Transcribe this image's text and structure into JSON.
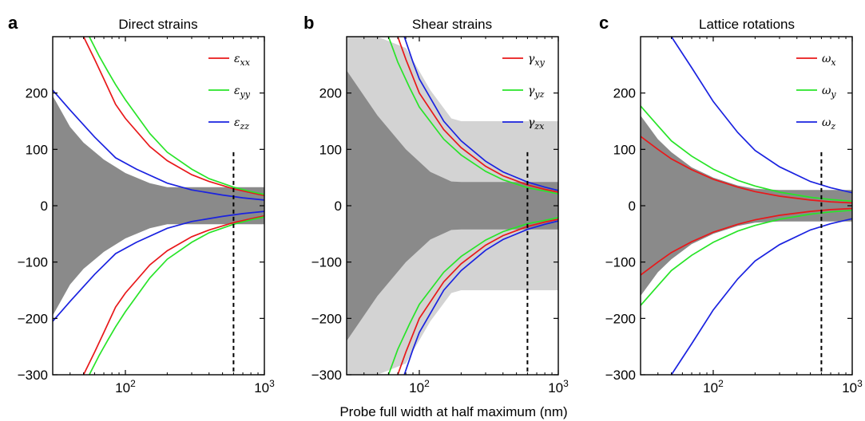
{
  "xlabel": "Probe full width at half maximum (nm)",
  "chart_data": [
    {
      "type": "line",
      "panel_letter": "a",
      "title": "Direct strains",
      "xscale": "log",
      "xlim": [
        30,
        1000
      ],
      "ylim": [
        -300,
        300
      ],
      "yticks": [
        {
          "v": -300,
          "label": "−300"
        },
        {
          "v": -200,
          "label": "−200"
        },
        {
          "v": -100,
          "label": "−100"
        },
        {
          "v": 0,
          "label": "0"
        },
        {
          "v": 100,
          "label": "100"
        },
        {
          "v": 200,
          "label": "200"
        }
      ],
      "xticks": [
        {
          "v": 100,
          "base": "10",
          "exp": "2"
        },
        {
          "v": 1000,
          "base": "10",
          "exp": "3"
        }
      ],
      "vline_x": 600,
      "legend_position": "top-right",
      "bands": [
        {
          "color": "#8a8a8a",
          "x": [
            30,
            40,
            50,
            70,
            100,
            150,
            200,
            300,
            500,
            700,
            1000
          ],
          "upper": [
            195,
            140,
            112,
            82,
            58,
            40,
            33,
            33,
            33,
            33,
            33
          ]
        }
      ],
      "series": [
        {
          "name": "ε",
          "sub": "xx",
          "color": "#e8181a",
          "symmetric": true,
          "x": [
            50,
            60,
            70,
            85,
            100,
            150,
            200,
            300,
            400,
            600,
            800,
            1000
          ],
          "y": [
            300,
            260,
            225,
            180,
            155,
            105,
            80,
            55,
            43,
            30,
            23,
            18
          ]
        },
        {
          "name": "ε",
          "sub": "yy",
          "color": "#28e428",
          "symmetric": true,
          "x": [
            55,
            65,
            75,
            85,
            100,
            150,
            200,
            300,
            400,
            600,
            800,
            1000
          ],
          "y": [
            300,
            265,
            238,
            215,
            188,
            128,
            95,
            65,
            48,
            33,
            25,
            20
          ]
        },
        {
          "name": "ε",
          "sub": "zz",
          "color": "#1a22e0",
          "symmetric": true,
          "x": [
            30,
            40,
            60,
            85,
            120,
            200,
            300,
            500,
            700,
            1000
          ],
          "y": [
            205,
            170,
            122,
            85,
            65,
            40,
            28,
            19,
            14,
            10
          ]
        }
      ]
    },
    {
      "type": "line",
      "panel_letter": "b",
      "title": "Shear strains",
      "xscale": "log",
      "xlim": [
        30,
        1000
      ],
      "ylim": [
        -300,
        300
      ],
      "yticks": [
        {
          "v": -300,
          "label": "−300"
        },
        {
          "v": -200,
          "label": "−200"
        },
        {
          "v": -100,
          "label": "−100"
        },
        {
          "v": 0,
          "label": "0"
        },
        {
          "v": 100,
          "label": "100"
        },
        {
          "v": 200,
          "label": "200"
        }
      ],
      "xticks": [
        {
          "v": 100,
          "base": "10",
          "exp": "2"
        },
        {
          "v": 1000,
          "base": "10",
          "exp": "3"
        }
      ],
      "vline_x": 600,
      "legend_position": "top-right",
      "bands": [
        {
          "color": "#d3d3d3",
          "x": [
            30,
            50,
            80,
            120,
            170,
            200,
            300,
            500,
            700,
            1000
          ],
          "upper": [
            300,
            300,
            280,
            205,
            155,
            150,
            150,
            150,
            150,
            150
          ]
        },
        {
          "color": "#8a8a8a",
          "x": [
            30,
            50,
            80,
            120,
            170,
            200,
            300,
            500,
            700,
            1000
          ],
          "upper": [
            240,
            160,
            100,
            60,
            43,
            42,
            42,
            42,
            42,
            42
          ]
        }
      ],
      "series": [
        {
          "name": "γ",
          "sub": "xy",
          "color": "#e8181a",
          "symmetric": true,
          "x": [
            70,
            80,
            100,
            150,
            200,
            300,
            400,
            600,
            800,
            1000
          ],
          "y": [
            300,
            260,
            200,
            135,
            103,
            70,
            53,
            37,
            29,
            24
          ]
        },
        {
          "name": "γ",
          "sub": "yz",
          "color": "#28e428",
          "symmetric": true,
          "x": [
            60,
            70,
            85,
            100,
            150,
            200,
            300,
            400,
            600,
            800,
            1000
          ],
          "y": [
            300,
            255,
            210,
            175,
            118,
            90,
            61,
            46,
            32,
            26,
            21
          ]
        },
        {
          "name": "γ",
          "sub": "zx",
          "color": "#1a22e0",
          "symmetric": true,
          "x": [
            78,
            90,
            100,
            150,
            200,
            300,
            400,
            600,
            800,
            1000
          ],
          "y": [
            300,
            255,
            225,
            150,
            115,
            79,
            60,
            42,
            33,
            27
          ]
        }
      ]
    },
    {
      "type": "line",
      "panel_letter": "c",
      "title": "Lattice rotations",
      "xscale": "log",
      "xlim": [
        30,
        1000
      ],
      "ylim": [
        -300,
        300
      ],
      "yticks": [
        {
          "v": -300,
          "label": "−300"
        },
        {
          "v": -200,
          "label": "−200"
        },
        {
          "v": -100,
          "label": "−100"
        },
        {
          "v": 0,
          "label": "0"
        },
        {
          "v": 100,
          "label": "100"
        },
        {
          "v": 200,
          "label": "200"
        }
      ],
      "xticks": [
        {
          "v": 100,
          "base": "10",
          "exp": "2"
        },
        {
          "v": 1000,
          "base": "10",
          "exp": "3"
        }
      ],
      "vline_x": 600,
      "legend_position": "top-right",
      "bands": [
        {
          "color": "#8a8a8a",
          "x": [
            30,
            40,
            50,
            70,
            100,
            150,
            200,
            300,
            500,
            700,
            1000
          ],
          "upper": [
            160,
            118,
            95,
            68,
            50,
            36,
            30,
            28,
            28,
            28,
            28
          ]
        }
      ],
      "series": [
        {
          "name": "ω",
          "sub": "x",
          "color": "#e8181a",
          "symmetric": true,
          "x": [
            30,
            40,
            50,
            70,
            100,
            150,
            200,
            300,
            500,
            700,
            1000
          ],
          "y": [
            123,
            100,
            83,
            64,
            47,
            33,
            25,
            17,
            10,
            7,
            5
          ]
        },
        {
          "name": "ω",
          "sub": "y",
          "color": "#28e428",
          "symmetric": true,
          "x": [
            30,
            40,
            50,
            70,
            100,
            150,
            200,
            300,
            500,
            700,
            1000
          ],
          "y": [
            177,
            142,
            115,
            88,
            65,
            45,
            35,
            24,
            15,
            11,
            8
          ]
        },
        {
          "name": "ω",
          "sub": "z",
          "color": "#1a22e0",
          "symmetric": true,
          "x": [
            50,
            70,
            100,
            150,
            200,
            300,
            500,
            700,
            1000
          ],
          "y": [
            300,
            245,
            185,
            130,
            98,
            69,
            43,
            32,
            23
          ]
        }
      ]
    }
  ]
}
